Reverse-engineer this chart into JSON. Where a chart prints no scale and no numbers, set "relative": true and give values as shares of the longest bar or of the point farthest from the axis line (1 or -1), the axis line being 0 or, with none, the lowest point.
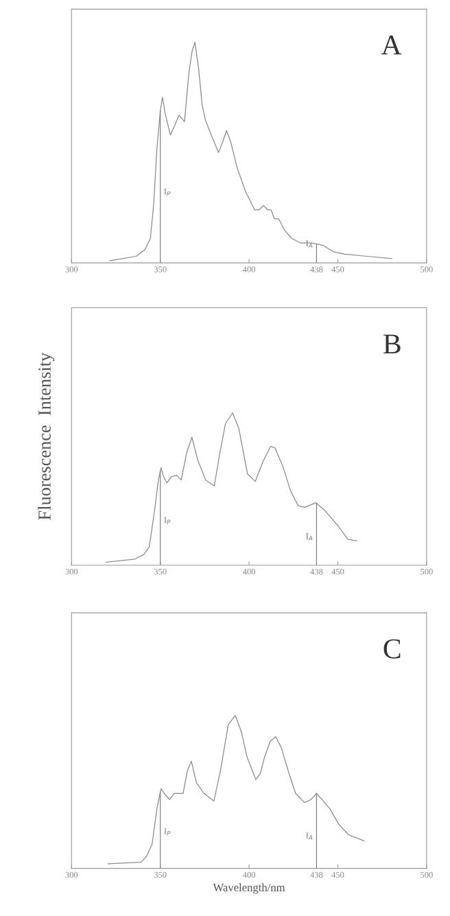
{
  "chart_data": [
    {
      "type": "line",
      "title": "A",
      "relative": true,
      "xlim": [
        300,
        500
      ],
      "xticks": [
        300,
        350,
        400,
        438,
        450,
        500
      ],
      "tick_labels": "x",
      "ref_lines": [
        {
          "axis": "x",
          "value": 350,
          "label": "I$_{P}$"
        },
        {
          "axis": "x",
          "value": 438,
          "label": "I$_{A}$"
        }
      ],
      "series": [
        {
          "color": "#8a8a8a",
          "x": [
            321.6,
            336.4,
            341.3,
            344.4,
            346.3,
            348.1,
            350,
            351.2,
            352.7,
            355.6,
            358,
            360.5,
            363.6,
            366.1,
            367.9,
            369.5,
            371.6,
            373.5,
            375.3,
            377.2,
            379.7,
            382.8,
            385.2,
            387.3,
            389.6,
            393.3,
            398.2,
            403.2,
            405.6,
            408.1,
            410.6,
            412.4,
            414.3,
            416.7,
            419.8,
            424.2,
            429.1,
            435.3,
            441.5,
            447.7,
            453.8,
            466.2,
            480.4
          ],
          "values": [
            0.01,
            0.03,
            0.06,
            0.11,
            0.27,
            0.52,
            0.69,
            0.75,
            0.68,
            0.58,
            0.62,
            0.67,
            0.64,
            0.86,
            0.96,
            1.0,
            0.88,
            0.72,
            0.65,
            0.61,
            0.56,
            0.5,
            0.55,
            0.6,
            0.55,
            0.43,
            0.32,
            0.24,
            0.24,
            0.26,
            0.24,
            0.24,
            0.2,
            0.2,
            0.15,
            0.11,
            0.09,
            0.09,
            0.08,
            0.05,
            0.04,
            0.03,
            0.02
          ]
        }
      ]
    },
    {
      "type": "line",
      "title": "B",
      "ylabel": "Fluorescence  Intensity",
      "relative": true,
      "xlim": [
        300,
        500
      ],
      "xticks": [
        300,
        350,
        400,
        438,
        450,
        500
      ],
      "tick_labels": "x",
      "ref_lines": [
        {
          "axis": "x",
          "value": 350,
          "label": "I$_{P}$"
        },
        {
          "axis": "x",
          "value": 438,
          "label": "I$_{A}$"
        }
      ],
      "series": [
        {
          "color": "#8a8a8a",
          "x": [
            319.5,
            335.7,
            340.7,
            343.8,
            346.9,
            348.8,
            350.4,
            351.9,
            353.7,
            356.2,
            359.3,
            361.8,
            364.9,
            367.8,
            371.1,
            375.5,
            380.4,
            383.6,
            386.7,
            390.7,
            394.2,
            399.1,
            403.5,
            407.8,
            412.2,
            414.6,
            419.0,
            423.3,
            427.7,
            431.4,
            437.6,
            442.6,
            450.0,
            455.6,
            460.6
          ],
          "values": [
            0.02,
            0.04,
            0.07,
            0.12,
            0.37,
            0.55,
            0.64,
            0.58,
            0.54,
            0.58,
            0.59,
            0.56,
            0.74,
            0.84,
            0.69,
            0.56,
            0.52,
            0.74,
            0.93,
            1.0,
            0.9,
            0.6,
            0.55,
            0.68,
            0.78,
            0.77,
            0.65,
            0.49,
            0.39,
            0.38,
            0.41,
            0.36,
            0.26,
            0.17,
            0.16
          ]
        }
      ]
    },
    {
      "type": "line",
      "title": "C",
      "xlabel": "Wavelength/nm",
      "relative": true,
      "xlim": [
        300,
        500
      ],
      "xticks": [
        300,
        350,
        400,
        438,
        450,
        500
      ],
      "tick_labels": "x",
      "ref_lines": [
        {
          "axis": "x",
          "value": 350,
          "label": "I$_{P}$"
        },
        {
          "axis": "x",
          "value": 438,
          "label": "I$_{A}$"
        }
      ],
      "series": [
        {
          "color": "#8a8a8a",
          "x": [
            320.5,
            339.2,
            342.3,
            345.4,
            348.1,
            350.4,
            352.9,
            355.3,
            357.8,
            362.8,
            365.3,
            367.5,
            370.3,
            374.6,
            380.2,
            383.9,
            388.3,
            392.2,
            395.7,
            398.8,
            403.8,
            406.3,
            408.8,
            411.9,
            415.0,
            418.1,
            422.5,
            426.2,
            431.2,
            434.9,
            438.0,
            441.1,
            445.5,
            450.4,
            456.0,
            464.7
          ],
          "values": [
            0.03,
            0.04,
            0.08,
            0.16,
            0.39,
            0.52,
            0.48,
            0.45,
            0.49,
            0.49,
            0.64,
            0.7,
            0.56,
            0.49,
            0.44,
            0.64,
            0.94,
            1.0,
            0.89,
            0.73,
            0.58,
            0.62,
            0.73,
            0.83,
            0.86,
            0.79,
            0.62,
            0.49,
            0.43,
            0.45,
            0.49,
            0.45,
            0.39,
            0.29,
            0.22,
            0.18
          ]
        }
      ]
    }
  ]
}
